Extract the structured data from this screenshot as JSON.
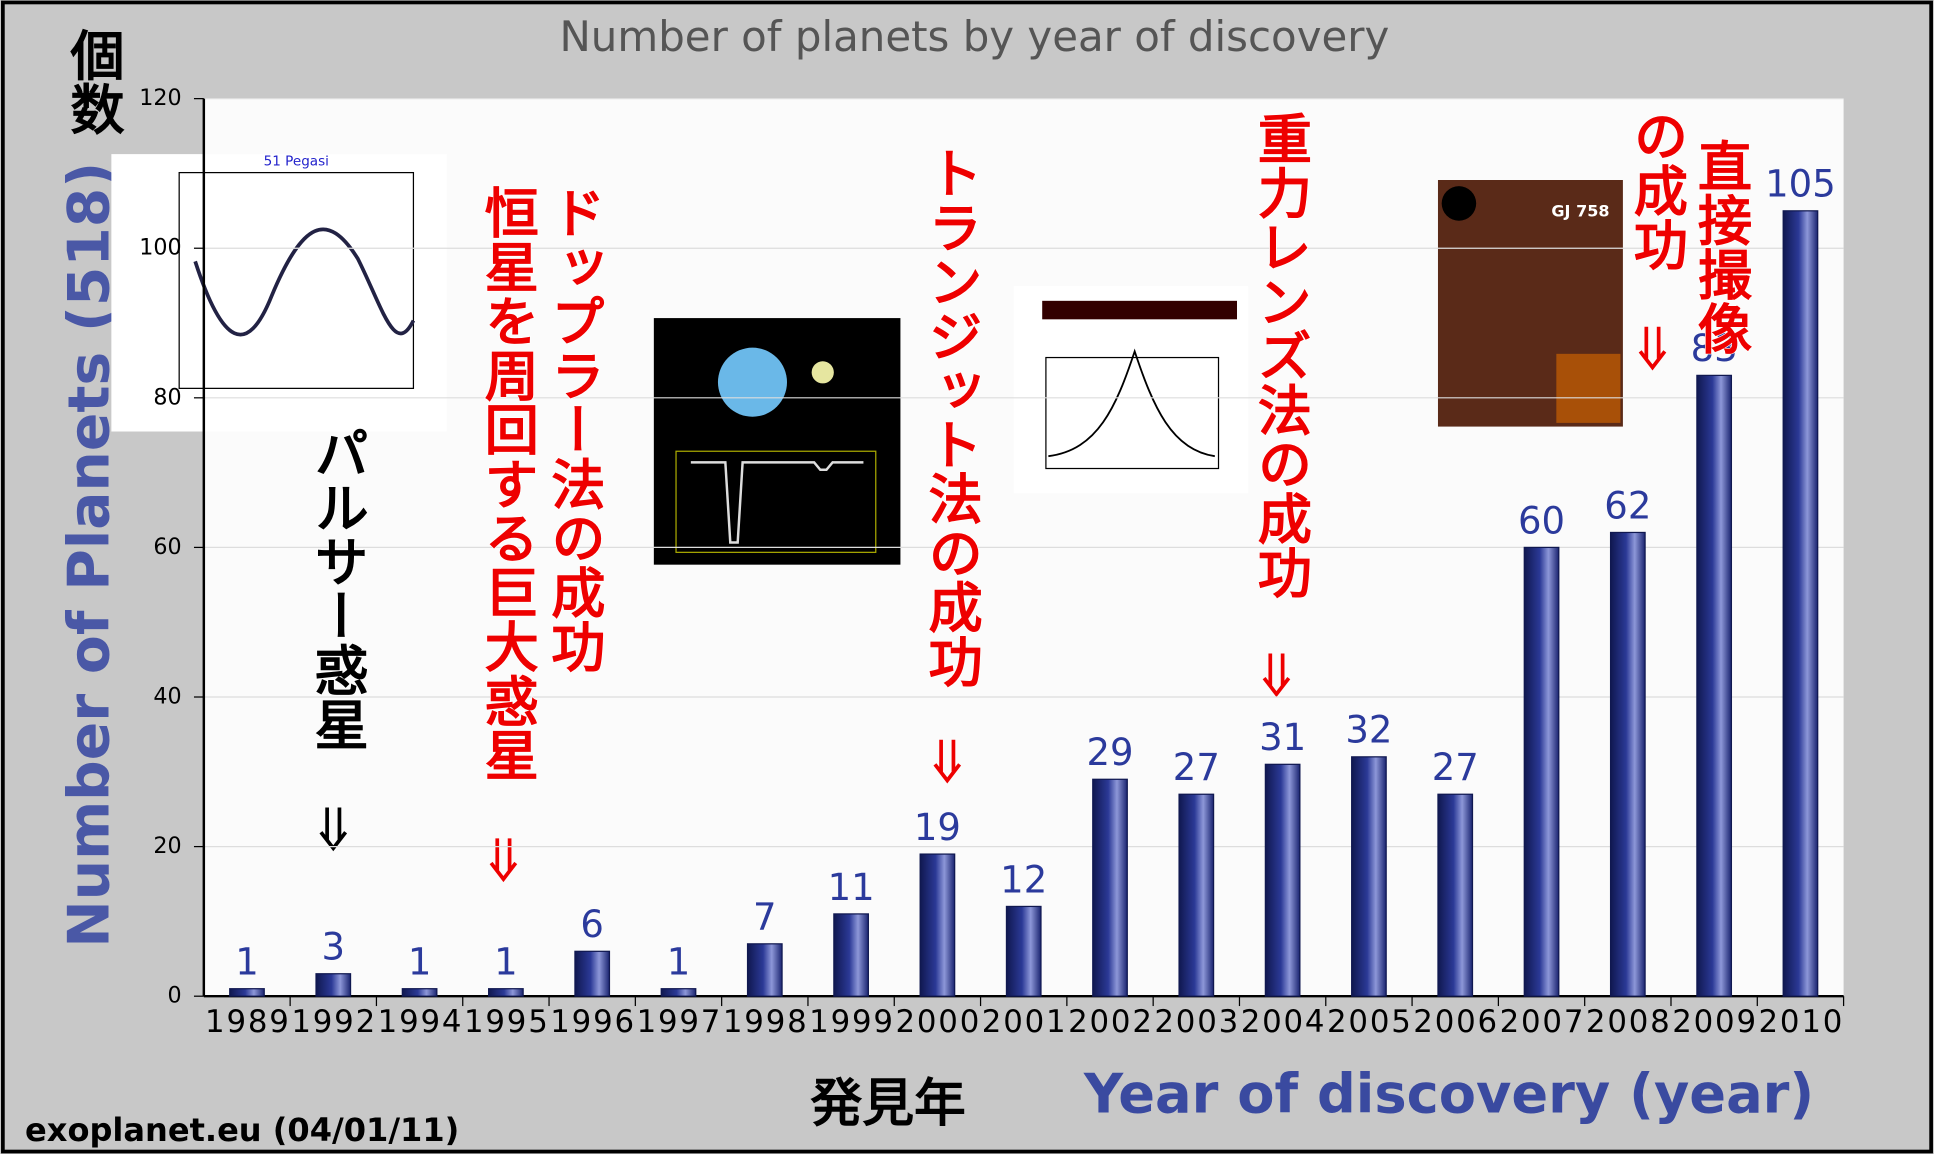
{
  "chart_data": {
    "type": "bar",
    "title": "Number of planets by year of discovery",
    "y_label": "Number of Planets (518)",
    "y_label_ja": "個数",
    "x_label": "Year of discovery (year)",
    "x_label_ja": "発見年",
    "source": "exoplanet.eu (04/01/11)",
    "categories": [
      "1989",
      "1992",
      "1994",
      "1995",
      "1996",
      "1997",
      "1998",
      "1999",
      "2000",
      "2001",
      "2002",
      "2003",
      "2004",
      "2005",
      "2006",
      "2007",
      "2008",
      "2009",
      "2010"
    ],
    "values": [
      1,
      3,
      1,
      1,
      6,
      1,
      7,
      11,
      19,
      12,
      29,
      27,
      31,
      32,
      27,
      60,
      62,
      83,
      105
    ],
    "color": "#2b3996",
    "ylim": [
      0,
      120
    ],
    "yticks": [
      0,
      20,
      40,
      60,
      80,
      100,
      120
    ],
    "grid": true,
    "annotations": [
      "パルサー惑星",
      "ドップラー法の成功",
      "恒星を周回する巨大惑星",
      "トランジット法の成功",
      "重力レンズ法の成功",
      "直接撮像",
      "の成功"
    ],
    "inset_titles": [
      "51 Pegasi",
      "GJ 758"
    ]
  }
}
